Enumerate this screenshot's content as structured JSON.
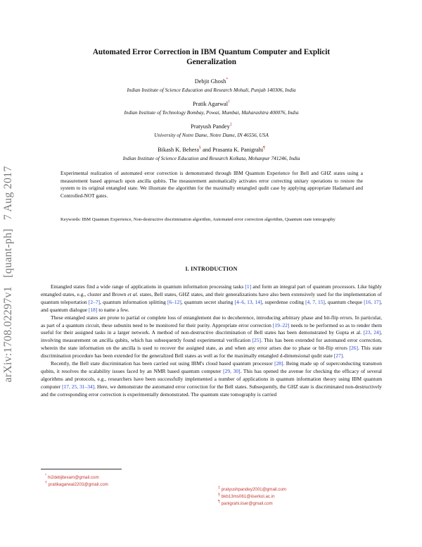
{
  "arxiv_stamp": {
    "id": "arXiv:1708.02297v1",
    "category": "[quant-ph]",
    "date": "7 Aug 2017"
  },
  "title_line1": "Automated Error Correction in IBM Quantum Computer and Explicit",
  "title_line2": "Generalization",
  "authors": [
    {
      "name": "Debjit Ghosh",
      "mark": "*",
      "affiliation": "Indian Institute of Science Education and Research Mohali, Punjab 140306, India"
    },
    {
      "name": "Pratik Agarwal",
      "mark": "†",
      "affiliation": "Indian Institute of Technology Bombay, Powai, Mumbai, Maharashtra 400076, India"
    },
    {
      "name": "Pratyush Pandey",
      "mark": "‡",
      "affiliation": "University of Notre Dame, Notre Dame, IN 46556, USA"
    }
  ],
  "author_pair": {
    "name1": "Bikash K. Behera",
    "mark1": "§",
    "and": "and",
    "name2": "Prasanta K. Panigrahi",
    "mark2": "¶",
    "affiliation": "Indian Institute of Science Education and Research Kolkata, Mohanpur 741246, India"
  },
  "abstract": "Experimental realization of automated error correction is demonstrated through IBM Quantum Experience for Bell and GHZ states using a measurement based approach upon ancilla qubits. The measurement automatically activates error correcting unitary operations to restore the system to its original entangled state. We illustrate the algorithm for the maximally entangled qudit case by applying appropriate Hadamard and Controlled-NOT gates.",
  "keywords": "Keywords: IBM Quantum Experience, Non-destructive discrimination algorithm, Automated error correction algorithm, Quantum state tomography",
  "section_heading": "I.   INTRODUCTION",
  "para1": {
    "a": "Entangled states find a wide range of applications in quantum information processing tasks ",
    "c1": "[1]",
    "b": " and form an integral part of quantum processors. Like highly entangled states, e.g., cluster and Brown ",
    "etal": "et al.",
    "c": " states, Bell states, GHZ states, and their generalizations have also been extensively used for the implementation of quantum teleportation ",
    "c2": "[2–7]",
    "d": ", quantum information splitting ",
    "c3": "[6–12]",
    "e": ", quantum secret sharing ",
    "c4": "[4–6, 13, 14]",
    "f": ", superdense coding ",
    "c5": "[4, 7, 15]",
    "g": ", quantum cheque ",
    "c6": "[16, 17]",
    "h": ", and quantum dialogue ",
    "c7": "[18]",
    "i": " to name a few."
  },
  "para2": {
    "a": "These entangled states are prone to partial or complete loss of entanglement due to decoherence, introducing arbitrary phase and bit-flip errors. In particular, as part of a quantum circuit, these subunits need to be monitored for their purity. Appropriate error correction ",
    "c1": "[19–22]",
    "b": " needs to be performed so as to render them useful for their assigned tasks in a larger network. A method of non-destructive discrimination of Bell states has been demonstrated by Gupta et al. ",
    "c2": "[23, 24]",
    "c": ", involving measurement on ancilla qubits, which has subsequently found experimental verification ",
    "c3": "[25]",
    "d": ". This has been extended for automated error correction, wherein the state information on the ancilla is used to recover the assigned state, as and when any error arises due to phase or bit-flip errors ",
    "c4": "[26]",
    "e": ". This state discrimination procedure has been extended for the generalized Bell states as well as for the maximally entangled d-dimensional qudit state ",
    "c5": "[27]",
    "f": "."
  },
  "para3": {
    "a": "Recently, the Bell state discrimination has been carried out using IBM's cloud based quantum processor ",
    "c1": "[28]",
    "b": ". Being made up of superconducting transmon qubits, it resolves the scalability issues faced by an NMR based quantum computer ",
    "c2": "[29, 30]",
    "c": ". This has opened the avenue for checking the efficacy of several algorithms and protocols, e.g., researchers have been successfully implemented a number of applications in quantum information theory using IBM quantum computer ",
    "c3": "[17, 25, 31–34]",
    "d": ". Here, we demonstrate the automated error correction for the Bell states. Subsequently, the GHZ state is discriminated non-destructively and the corresponding error correction is experimentally demonstrated. The quantum state tomography is carried"
  },
  "footnotes": [
    {
      "mark": "*",
      "email": "hi2debjitexam@gmail.com"
    },
    {
      "mark": "†",
      "email": "pratikagarwal2203@gmail.com"
    },
    {
      "mark": "‡",
      "email": "pratyushpandey2001@gmail.com"
    },
    {
      "mark": "§",
      "email": "bkb13ms061@iiserkol.ac.in"
    },
    {
      "mark": "¶",
      "email": "panigrahi.iiser@gmail.com"
    }
  ],
  "colors": {
    "link": "#2547c9",
    "footnote": "#c43a33",
    "stamp": "#7a7a7a"
  }
}
